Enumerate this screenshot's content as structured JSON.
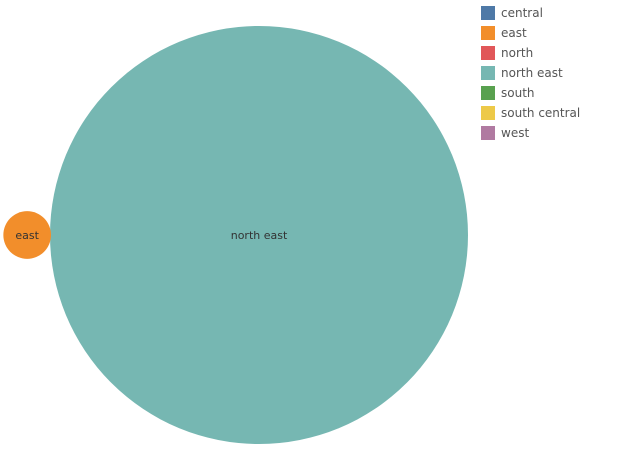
{
  "chart_data": {
    "type": "bubble",
    "title": "",
    "bubbles": [
      {
        "category": "north east",
        "label": "north east",
        "value": 100,
        "color": "#76B7B2"
      },
      {
        "category": "east",
        "label": "east",
        "value": 1.3,
        "color": "#F28E2B"
      }
    ],
    "legend": {
      "position": "top-right",
      "items": [
        {
          "label": "central",
          "color": "#4E79A7"
        },
        {
          "label": "east",
          "color": "#F28E2B"
        },
        {
          "label": "north",
          "color": "#E15759"
        },
        {
          "label": "north east",
          "color": "#76B7B2"
        },
        {
          "label": "south",
          "color": "#59A14F"
        },
        {
          "label": "south central",
          "color": "#EDC948"
        },
        {
          "label": "west",
          "color": "#B07AA1"
        }
      ]
    }
  }
}
